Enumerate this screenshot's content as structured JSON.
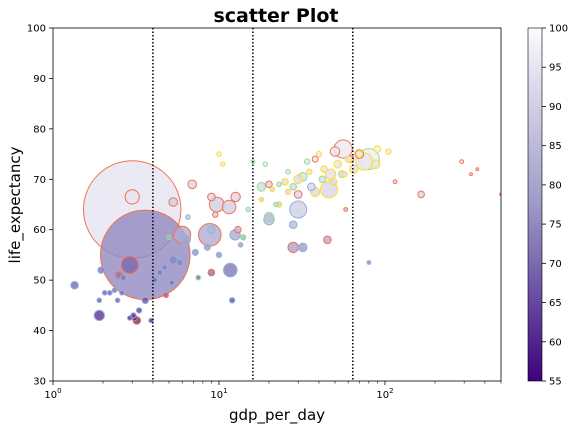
{
  "chart_data": {
    "type": "scatter",
    "title": "scatter Plot",
    "xlabel": "gdp_per_day",
    "ylabel": "life_expectancy",
    "xscale": "log",
    "xlim": [
      1,
      500
    ],
    "ylim": [
      30,
      100
    ],
    "x_ticks": [
      {
        "value": 1,
        "base": "10",
        "exp": "0"
      },
      {
        "value": 10,
        "base": "10",
        "exp": "1"
      },
      {
        "value": 100,
        "base": "10",
        "exp": "2"
      }
    ],
    "y_ticks": [
      "30",
      "40",
      "50",
      "60",
      "70",
      "80",
      "90",
      "100"
    ],
    "vlines": [
      4,
      16,
      64
    ],
    "grid": false,
    "colorbar": {
      "range": [
        55,
        100
      ],
      "ticks": [
        "55",
        "60",
        "65",
        "70",
        "75",
        "80",
        "85",
        "90",
        "95",
        "100"
      ],
      "colormap": "Purples_r"
    },
    "group_colors": {
      "Asia": "#f4714f",
      "Africa": "#8fb3df",
      "Americas": "#90e090",
      "Europe": "#ffdf28"
    },
    "points": [
      {
        "x": 3.0,
        "y": 64,
        "size": 1300,
        "c": 95,
        "edge": "Asia"
      },
      {
        "x": 3.6,
        "y": 55,
        "size": 1100,
        "c": 75,
        "edge": "Asia"
      },
      {
        "x": 3.0,
        "y": 66.5,
        "size": 28,
        "c": 95,
        "edge": "Asia"
      },
      {
        "x": 2.9,
        "y": 53,
        "size": 40,
        "c": 70,
        "edge": "Asia"
      },
      {
        "x": 2.5,
        "y": 51,
        "size": 6,
        "c": 72,
        "edge": "Asia"
      },
      {
        "x": 3.1,
        "y": 42.5,
        "size": 4,
        "c": 60,
        "edge": "Asia"
      },
      {
        "x": 3.2,
        "y": 42,
        "size": 8,
        "c": 62,
        "edge": "Asia"
      },
      {
        "x": 4.8,
        "y": 47,
        "size": 3,
        "c": 70,
        "edge": "Asia"
      },
      {
        "x": 5.3,
        "y": 65.5,
        "size": 10,
        "c": 90,
        "edge": "Asia"
      },
      {
        "x": 6.0,
        "y": 59,
        "size": 40,
        "c": 82,
        "edge": "Asia"
      },
      {
        "x": 6.9,
        "y": 69,
        "size": 10,
        "c": 92,
        "edge": "Asia"
      },
      {
        "x": 8.8,
        "y": 59,
        "size": 70,
        "c": 82,
        "edge": "Asia"
      },
      {
        "x": 9.0,
        "y": 51.5,
        "size": 6,
        "c": 72,
        "edge": "Asia"
      },
      {
        "x": 9.5,
        "y": 63,
        "size": 4,
        "c": 90,
        "edge": "Asia"
      },
      {
        "x": 9.7,
        "y": 65,
        "size": 30,
        "c": 90,
        "edge": "Asia"
      },
      {
        "x": 9.0,
        "y": 66.5,
        "size": 8,
        "c": 92,
        "edge": "Asia"
      },
      {
        "x": 11.5,
        "y": 64.5,
        "size": 25,
        "c": 90,
        "edge": "Asia"
      },
      {
        "x": 12.6,
        "y": 66.5,
        "size": 12,
        "c": 92,
        "edge": "Asia"
      },
      {
        "x": 13.0,
        "y": 60,
        "size": 6,
        "c": 85,
        "edge": "Asia"
      },
      {
        "x": 20.0,
        "y": 69,
        "size": 6,
        "c": 92,
        "edge": "Asia"
      },
      {
        "x": 28.0,
        "y": 56.5,
        "size": 15,
        "c": 80,
        "edge": "Asia"
      },
      {
        "x": 30.0,
        "y": 67,
        "size": 8,
        "c": 92,
        "edge": "Asia"
      },
      {
        "x": 38.0,
        "y": 74,
        "size": 5,
        "c": 95,
        "edge": "Asia"
      },
      {
        "x": 45.0,
        "y": 58,
        "size": 8,
        "c": 82,
        "edge": "Asia"
      },
      {
        "x": 50.0,
        "y": 75.5,
        "size": 12,
        "c": 96,
        "edge": "Asia"
      },
      {
        "x": 56.0,
        "y": 76,
        "size": 45,
        "c": 96,
        "edge": "Asia"
      },
      {
        "x": 58.0,
        "y": 64,
        "size": 2,
        "c": 88,
        "edge": "Asia"
      },
      {
        "x": 62.0,
        "y": 74,
        "size": 6,
        "c": 95,
        "edge": "Asia"
      },
      {
        "x": 70.0,
        "y": 75,
        "size": 10,
        "c": 96,
        "edge": "Asia"
      },
      {
        "x": 115.0,
        "y": 69.5,
        "size": 2,
        "c": 93,
        "edge": "Asia"
      },
      {
        "x": 165.0,
        "y": 67,
        "size": 6,
        "c": 92,
        "edge": "Asia"
      },
      {
        "x": 290.0,
        "y": 73.5,
        "size": 2,
        "c": 95,
        "edge": "Asia"
      },
      {
        "x": 330.0,
        "y": 71,
        "size": 1,
        "c": 94,
        "edge": "Asia"
      },
      {
        "x": 360.0,
        "y": 72,
        "size": 1,
        "c": 94,
        "edge": "Asia"
      },
      {
        "x": 500.0,
        "y": 67,
        "size": 1,
        "c": 92,
        "edge": "Asia"
      },
      {
        "x": 1.35,
        "y": 49,
        "size": 8,
        "c": 70,
        "edge": "Africa"
      },
      {
        "x": 1.9,
        "y": 43,
        "size": 15,
        "c": 62,
        "edge": "Africa"
      },
      {
        "x": 1.9,
        "y": 46,
        "size": 3,
        "c": 68,
        "edge": "Africa"
      },
      {
        "x": 1.95,
        "y": 52,
        "size": 6,
        "c": 72,
        "edge": "Africa"
      },
      {
        "x": 2.05,
        "y": 47.5,
        "size": 3,
        "c": 68,
        "edge": "Africa"
      },
      {
        "x": 2.2,
        "y": 47.5,
        "size": 3,
        "c": 68,
        "edge": "Africa"
      },
      {
        "x": 2.35,
        "y": 48,
        "size": 3,
        "c": 70,
        "edge": "Africa"
      },
      {
        "x": 2.45,
        "y": 46,
        "size": 3,
        "c": 68,
        "edge": "Africa"
      },
      {
        "x": 2.6,
        "y": 47.5,
        "size": 3,
        "c": 70,
        "edge": "Africa"
      },
      {
        "x": 2.65,
        "y": 50.5,
        "size": 5,
        "c": 72,
        "edge": "Africa"
      },
      {
        "x": 2.9,
        "y": 42.5,
        "size": 3,
        "c": 60,
        "edge": "Africa"
      },
      {
        "x": 3.05,
        "y": 43,
        "size": 4,
        "c": 62,
        "edge": "Africa"
      },
      {
        "x": 3.3,
        "y": 44,
        "size": 4,
        "c": 64,
        "edge": "Africa"
      },
      {
        "x": 3.6,
        "y": 46,
        "size": 6,
        "c": 66,
        "edge": "Africa"
      },
      {
        "x": 3.9,
        "y": 42,
        "size": 3,
        "c": 60,
        "edge": "Africa"
      },
      {
        "x": 4.1,
        "y": 50,
        "size": 4,
        "c": 70,
        "edge": "Africa"
      },
      {
        "x": 4.4,
        "y": 51.5,
        "size": 4,
        "c": 72,
        "edge": "Africa"
      },
      {
        "x": 4.7,
        "y": 52.5,
        "size": 4,
        "c": 73,
        "edge": "Africa"
      },
      {
        "x": 5.2,
        "y": 49.5,
        "size": 3,
        "c": 70,
        "edge": "Africa"
      },
      {
        "x": 5.3,
        "y": 54,
        "size": 10,
        "c": 74,
        "edge": "Africa"
      },
      {
        "x": 5.8,
        "y": 53.5,
        "size": 6,
        "c": 74,
        "edge": "Africa"
      },
      {
        "x": 6.3,
        "y": 58,
        "size": 12,
        "c": 80,
        "edge": "Africa"
      },
      {
        "x": 6.5,
        "y": 62.5,
        "size": 3,
        "c": 88,
        "edge": "Africa"
      },
      {
        "x": 7.2,
        "y": 55.5,
        "size": 5,
        "c": 76,
        "edge": "Africa"
      },
      {
        "x": 8.5,
        "y": 56.5,
        "size": 5,
        "c": 78,
        "edge": "Africa"
      },
      {
        "x": 9.0,
        "y": 60,
        "size": 8,
        "c": 84,
        "edge": "Africa"
      },
      {
        "x": 10.0,
        "y": 55,
        "size": 4,
        "c": 76,
        "edge": "Africa"
      },
      {
        "x": 11.7,
        "y": 52,
        "size": 25,
        "c": 72,
        "edge": "Africa"
      },
      {
        "x": 12.0,
        "y": 46,
        "size": 4,
        "c": 66,
        "edge": "Africa"
      },
      {
        "x": 12.5,
        "y": 59,
        "size": 15,
        "c": 82,
        "edge": "Africa"
      },
      {
        "x": 13.5,
        "y": 57,
        "size": 3,
        "c": 78,
        "edge": "Africa"
      },
      {
        "x": 20.0,
        "y": 62,
        "size": 15,
        "c": 86,
        "edge": "Africa"
      },
      {
        "x": 28.0,
        "y": 61,
        "size": 8,
        "c": 85,
        "edge": "Africa"
      },
      {
        "x": 32.0,
        "y": 56.5,
        "size": 10,
        "c": 78,
        "edge": "Africa"
      },
      {
        "x": 30.0,
        "y": 64,
        "size": 40,
        "c": 90,
        "edge": "Africa"
      },
      {
        "x": 36.0,
        "y": 68.5,
        "size": 8,
        "c": 92,
        "edge": "Africa"
      },
      {
        "x": 80.0,
        "y": 53.5,
        "size": 2,
        "c": 74,
        "edge": "Africa"
      },
      {
        "x": 5.0,
        "y": 58.5,
        "size": 3,
        "c": 82,
        "edge": "Americas"
      },
      {
        "x": 7.5,
        "y": 50.5,
        "size": 3,
        "c": 70,
        "edge": "Americas"
      },
      {
        "x": 14.0,
        "y": 58.5,
        "size": 4,
        "c": 82,
        "edge": "Americas"
      },
      {
        "x": 15.0,
        "y": 64,
        "size": 3,
        "c": 90,
        "edge": "Americas"
      },
      {
        "x": 16.0,
        "y": 73.5,
        "size": 2,
        "c": 95,
        "edge": "Americas"
      },
      {
        "x": 18.0,
        "y": 68.5,
        "size": 10,
        "c": 92,
        "edge": "Americas"
      },
      {
        "x": 19.0,
        "y": 73,
        "size": 3,
        "c": 95,
        "edge": "Americas"
      },
      {
        "x": 20.0,
        "y": 62.5,
        "size": 12,
        "c": 86,
        "edge": "Americas"
      },
      {
        "x": 22.0,
        "y": 65,
        "size": 3,
        "c": 90,
        "edge": "Americas"
      },
      {
        "x": 23.0,
        "y": 69,
        "size": 3,
        "c": 92,
        "edge": "Americas"
      },
      {
        "x": 26.0,
        "y": 71.5,
        "size": 3,
        "c": 94,
        "edge": "Americas"
      },
      {
        "x": 28.0,
        "y": 68.5,
        "size": 6,
        "c": 92,
        "edge": "Americas"
      },
      {
        "x": 32.0,
        "y": 70.5,
        "size": 10,
        "c": 93,
        "edge": "Americas"
      },
      {
        "x": 34.0,
        "y": 73.5,
        "size": 4,
        "c": 95,
        "edge": "Americas"
      },
      {
        "x": 42.0,
        "y": 70,
        "size": 6,
        "c": 93,
        "edge": "Americas"
      },
      {
        "x": 55.0,
        "y": 71,
        "size": 6,
        "c": 94,
        "edge": "Americas"
      },
      {
        "x": 80.0,
        "y": 74,
        "size": 60,
        "c": 97,
        "edge": "Americas"
      },
      {
        "x": 10.0,
        "y": 75,
        "size": 3,
        "c": 96,
        "edge": "Europe"
      },
      {
        "x": 10.5,
        "y": 73,
        "size": 3,
        "c": 95,
        "edge": "Europe"
      },
      {
        "x": 18.0,
        "y": 66,
        "size": 3,
        "c": 91,
        "edge": "Europe"
      },
      {
        "x": 21.0,
        "y": 68,
        "size": 3,
        "c": 92,
        "edge": "Europe"
      },
      {
        "x": 23.0,
        "y": 65,
        "size": 4,
        "c": 90,
        "edge": "Europe"
      },
      {
        "x": 25.0,
        "y": 69.5,
        "size": 6,
        "c": 93,
        "edge": "Europe"
      },
      {
        "x": 26.0,
        "y": 67.5,
        "size": 4,
        "c": 92,
        "edge": "Europe"
      },
      {
        "x": 30.0,
        "y": 70,
        "size": 10,
        "c": 93,
        "edge": "Europe"
      },
      {
        "x": 35.0,
        "y": 71.5,
        "size": 4,
        "c": 94,
        "edge": "Europe"
      },
      {
        "x": 38.0,
        "y": 67.5,
        "size": 12,
        "c": 92,
        "edge": "Europe"
      },
      {
        "x": 40.0,
        "y": 75,
        "size": 4,
        "c": 96,
        "edge": "Europe"
      },
      {
        "x": 43.0,
        "y": 72,
        "size": 6,
        "c": 94,
        "edge": "Europe"
      },
      {
        "x": 46.0,
        "y": 68,
        "size": 40,
        "c": 92,
        "edge": "Europe"
      },
      {
        "x": 47.0,
        "y": 71,
        "size": 15,
        "c": 94,
        "edge": "Europe"
      },
      {
        "x": 49.0,
        "y": 69.5,
        "size": 6,
        "c": 93,
        "edge": "Europe"
      },
      {
        "x": 52.0,
        "y": 73,
        "size": 8,
        "c": 95,
        "edge": "Europe"
      },
      {
        "x": 57.0,
        "y": 71,
        "size": 4,
        "c": 94,
        "edge": "Europe"
      },
      {
        "x": 60.0,
        "y": 74,
        "size": 6,
        "c": 95,
        "edge": "Europe"
      },
      {
        "x": 65.0,
        "y": 72,
        "size": 10,
        "c": 94,
        "edge": "Europe"
      },
      {
        "x": 70.0,
        "y": 75,
        "size": 6,
        "c": 96,
        "edge": "Europe"
      },
      {
        "x": 75.0,
        "y": 73.5,
        "size": 40,
        "c": 95,
        "edge": "Europe"
      },
      {
        "x": 90.0,
        "y": 76,
        "size": 6,
        "c": 97,
        "edge": "Europe"
      },
      {
        "x": 105.0,
        "y": 75.5,
        "size": 4,
        "c": 96,
        "edge": "Europe"
      },
      {
        "x": 88.0,
        "y": 73,
        "size": 10,
        "c": 95,
        "edge": "Europe"
      }
    ]
  }
}
